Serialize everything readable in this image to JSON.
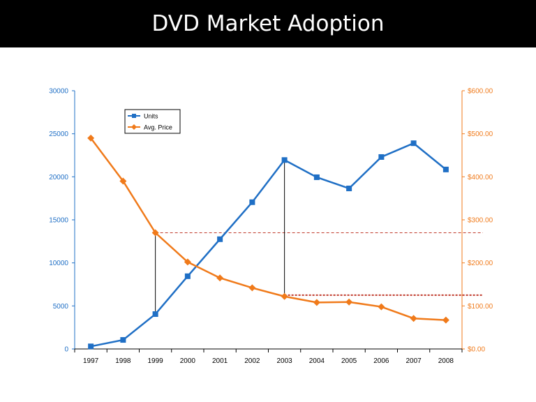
{
  "slide": {
    "title": "DVD Market Adoption"
  },
  "colors": {
    "units": "#1f6fc5",
    "price": "#f07a1a",
    "left_axis_text": "#1f6fc5",
    "right_axis_text": "#f07a1a",
    "reference_line": "#c0392b"
  },
  "chart_data": {
    "type": "line",
    "title": "DVD Market Adoption",
    "categories": [
      "1997",
      "1998",
      "1999",
      "2000",
      "2001",
      "2002",
      "2003",
      "2004",
      "2005",
      "2006",
      "2007",
      "2008"
    ],
    "series": [
      {
        "name": "Units",
        "axis": "left",
        "marker": "square",
        "values": [
          300,
          1050,
          4050,
          8450,
          12750,
          17050,
          21950,
          19950,
          18650,
          22300,
          23900,
          20850
        ]
      },
      {
        "name": "Avg. Price",
        "axis": "right",
        "marker": "diamond",
        "values": [
          490,
          390,
          270,
          202,
          165,
          142,
          122,
          108,
          109,
          98,
          71,
          67
        ]
      }
    ],
    "left_axis": {
      "ylim": [
        0,
        30000
      ],
      "ticks": [
        "0",
        "5000",
        "10000",
        "15000",
        "20000",
        "25000",
        "30000"
      ]
    },
    "right_axis": {
      "ylim": [
        0,
        600
      ],
      "ticks": [
        "$0.00",
        "$100.00",
        "$200.00",
        "$300.00",
        "$400.00",
        "$500.00",
        "$600.00"
      ]
    },
    "reference_lines": [
      {
        "year": "1999",
        "price": 270
      },
      {
        "year": "2003",
        "price": 125
      }
    ],
    "legend": {
      "position": "top-left",
      "entries": [
        "Units",
        "Avg. Price"
      ]
    },
    "grid": false
  }
}
